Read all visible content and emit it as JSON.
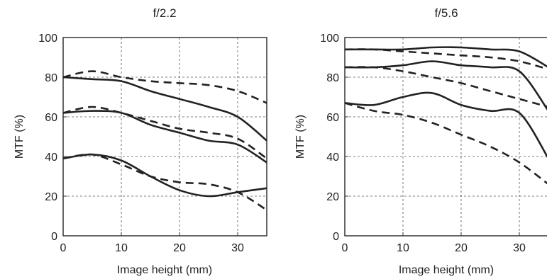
{
  "chart_data": [
    {
      "type": "line",
      "title": "f/2.2",
      "xlabel": "Image height (mm)",
      "ylabel": "MTF (%)",
      "xlim": [
        0,
        35
      ],
      "ylim": [
        0,
        100
      ],
      "xticks": [
        0,
        10,
        20,
        30
      ],
      "yticks": [
        0,
        20,
        40,
        60,
        80,
        100
      ],
      "grid": true,
      "series": [
        {
          "style": "solid",
          "x": [
            0,
            5,
            10,
            15,
            20,
            25,
            30,
            35
          ],
          "y": [
            80,
            79,
            78,
            73,
            69,
            65,
            60,
            48
          ]
        },
        {
          "style": "dashed",
          "x": [
            0,
            5,
            10,
            15,
            20,
            25,
            30,
            35
          ],
          "y": [
            80,
            83,
            80,
            78,
            77,
            76,
            73,
            67
          ]
        },
        {
          "style": "solid",
          "x": [
            0,
            5,
            10,
            15,
            20,
            25,
            30,
            35
          ],
          "y": [
            62,
            63,
            62,
            56,
            52,
            48,
            46,
            37
          ]
        },
        {
          "style": "dashed",
          "x": [
            0,
            5,
            10,
            15,
            20,
            25,
            30,
            35
          ],
          "y": [
            62,
            65,
            62,
            58,
            54,
            52,
            49,
            39
          ]
        },
        {
          "style": "solid",
          "x": [
            0,
            5,
            10,
            15,
            20,
            25,
            30,
            35
          ],
          "y": [
            39,
            41,
            38,
            30,
            23,
            20,
            22,
            24
          ]
        },
        {
          "style": "dashed",
          "x": [
            0,
            5,
            10,
            15,
            20,
            25,
            30,
            35
          ],
          "y": [
            39,
            41,
            36,
            30,
            27,
            26,
            22,
            13
          ]
        }
      ]
    },
    {
      "type": "line",
      "title": "f/5.6",
      "xlabel": "Image height (mm)",
      "ylabel": "MTF (%)",
      "xlim": [
        0,
        35
      ],
      "ylim": [
        0,
        100
      ],
      "xticks": [
        0,
        10,
        20,
        30
      ],
      "yticks": [
        0,
        20,
        40,
        60,
        80,
        100
      ],
      "grid": true,
      "series": [
        {
          "style": "solid",
          "x": [
            0,
            5,
            10,
            15,
            20,
            25,
            30,
            35
          ],
          "y": [
            94,
            94,
            94,
            95,
            95,
            94,
            93,
            85
          ]
        },
        {
          "style": "dashed",
          "x": [
            0,
            5,
            10,
            15,
            20,
            25,
            30,
            35
          ],
          "y": [
            94,
            94,
            93,
            92,
            91,
            90,
            88,
            84
          ]
        },
        {
          "style": "solid",
          "x": [
            0,
            5,
            10,
            15,
            20,
            25,
            30,
            35
          ],
          "y": [
            85,
            85,
            86,
            88,
            86,
            85,
            83,
            63
          ]
        },
        {
          "style": "dashed",
          "x": [
            0,
            5,
            10,
            15,
            20,
            25,
            30,
            35
          ],
          "y": [
            85,
            85,
            83,
            80,
            77,
            73,
            69,
            65
          ]
        },
        {
          "style": "solid",
          "x": [
            0,
            5,
            10,
            15,
            20,
            25,
            30,
            35
          ],
          "y": [
            67,
            66,
            70,
            72,
            66,
            63,
            62,
            39
          ]
        },
        {
          "style": "dashed",
          "x": [
            0,
            5,
            10,
            15,
            20,
            25,
            30,
            35
          ],
          "y": [
            67,
            63,
            61,
            57,
            51,
            45,
            37,
            26
          ]
        }
      ]
    }
  ]
}
